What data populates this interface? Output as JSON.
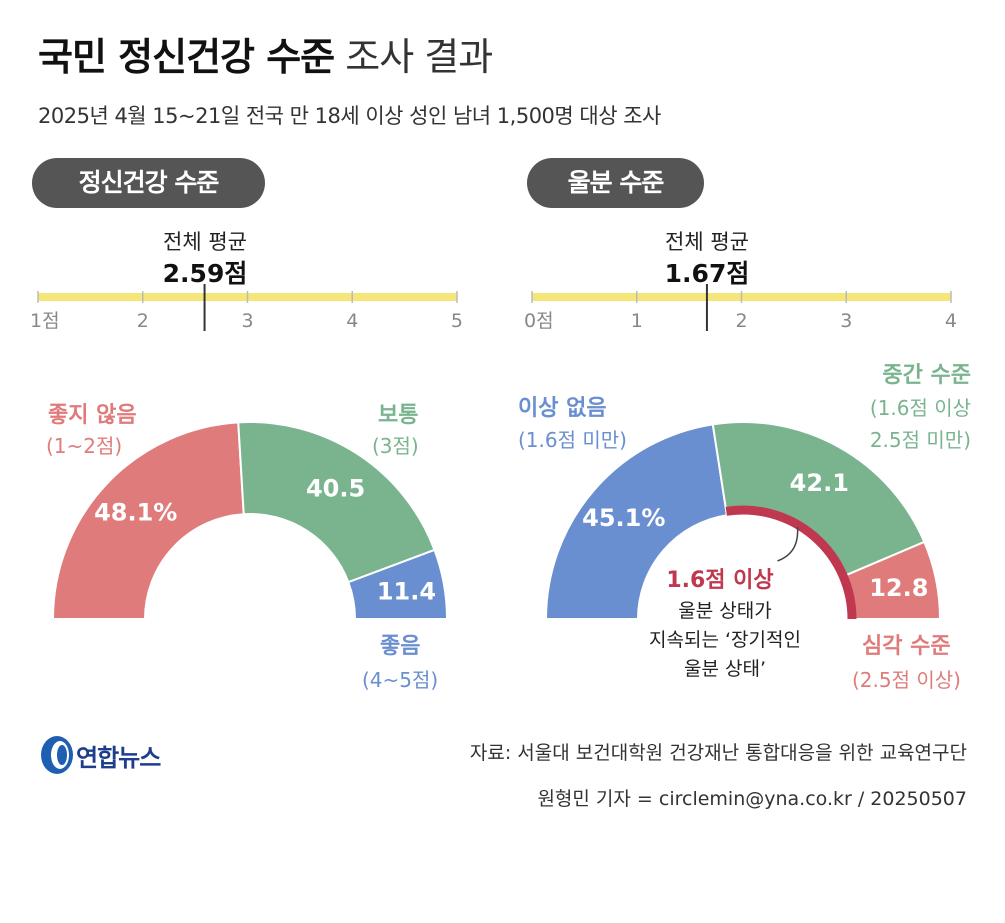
{
  "header": {
    "title_bold": "국민 정신건강 수준",
    "title_light": "조사 결과",
    "subtitle": "2025년 4월 15~21일 전국 만 18세 이상 성인 남녀 1,500명 대상 조사"
  },
  "colors": {
    "red": "#e07b7b",
    "green": "#7ab48f",
    "blue": "#6a8fd0",
    "crimson": "#c0384f",
    "bar": "#f5e67a",
    "pill": "#555555"
  },
  "chart_data": [
    {
      "type": "pie",
      "pill": "정신건강 수준",
      "avg_label": "전체 평균",
      "avg_value": 2.59,
      "avg_text": "2.59점",
      "scale_min": 1,
      "scale_max": 5,
      "ticks": [
        "1점",
        "2",
        "3",
        "4",
        "5"
      ],
      "tick_values": [
        1,
        2,
        3,
        4,
        5
      ],
      "segments": [
        {
          "name": "좋지 않음",
          "range": "(1~2점)",
          "value": 48.1,
          "label": "48.1%",
          "color": "#e07b7b"
        },
        {
          "name": "보통",
          "range": "(3점)",
          "value": 40.5,
          "label": "40.5",
          "color": "#7ab48f"
        },
        {
          "name": "좋음",
          "range": "(4~5점)",
          "value": 11.4,
          "label": "11.4",
          "color": "#6a8fd0"
        }
      ]
    },
    {
      "type": "pie",
      "pill": "울분 수준",
      "avg_label": "전체 평균",
      "avg_value": 1.67,
      "avg_text": "1.67점",
      "scale_min": 0,
      "scale_max": 4,
      "ticks": [
        "0점",
        "1",
        "2",
        "3",
        "4"
      ],
      "tick_values": [
        0,
        1,
        2,
        3,
        4
      ],
      "segments": [
        {
          "name": "이상 없음",
          "range": "(1.6점 미만)",
          "value": 45.1,
          "label": "45.1%",
          "color": "#6a8fd0"
        },
        {
          "name": "중간 수준",
          "range": "(1.6점 이상",
          "range2": "2.5점 미만)",
          "value": 42.1,
          "label": "42.1",
          "color": "#7ab48f"
        },
        {
          "name": "심각 수준",
          "range": "(2.5점 이상)",
          "value": 12.8,
          "label": "12.8",
          "color": "#e07b7b"
        }
      ],
      "annotation": {
        "title": "1.6점 이상",
        "lines": [
          "울분 상태가",
          "지속되는 ‘장기적인",
          "울분 상태’"
        ]
      }
    }
  ],
  "footer": {
    "logo": "연합뉴스",
    "source": "자료: 서울대 보건대학원 건강재난 통합대응을 위한 교육연구단",
    "reporter": "원형민 기자 = circlemin@yna.co.kr / 20250507"
  }
}
